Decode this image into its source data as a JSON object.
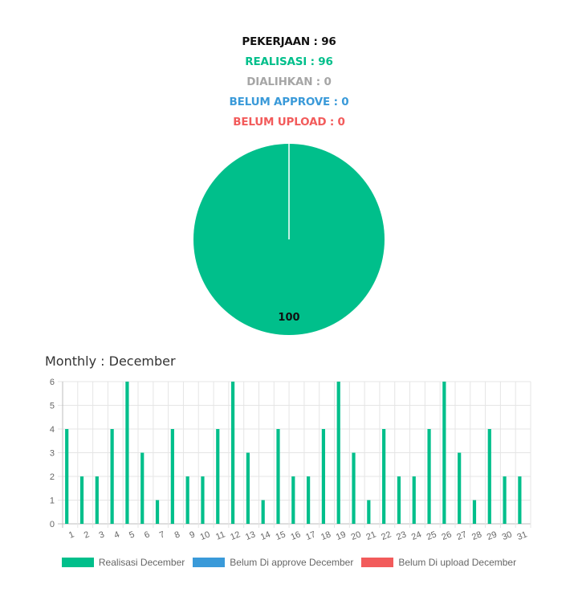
{
  "summary": {
    "pekerjaan": "PEKERJAAN : 96",
    "realisasi": "REALISASI : 96",
    "dialihkan": "DIALIHKAN : 0",
    "belum_approve": "BELUM APPROVE : 0",
    "belum_upload": "BELUM UPLOAD : 0"
  },
  "colors": {
    "pekerjaan": "#111111",
    "realisasi": "#00bf8b",
    "dialihkan": "#a6a6a6",
    "belum_approve": "#3a9ad9",
    "belum_upload": "#f25b5b",
    "grid": "#e5e5e5",
    "axis_text": "#666666"
  },
  "monthly_title": "Monthly : December",
  "chart_data": [
    {
      "type": "pie",
      "labels": [
        "REALISASI",
        "DIALIHKAN",
        "BELUM APPROVE",
        "BELUM UPLOAD"
      ],
      "values": [
        100,
        0,
        0,
        0
      ],
      "data_labels": [
        "100"
      ],
      "colors": [
        "#00bf8b",
        "#a6a6a6",
        "#3a9ad9",
        "#f25b5b"
      ]
    },
    {
      "type": "bar",
      "title": "Monthly : December",
      "categories": [
        "1",
        "2",
        "3",
        "4",
        "5",
        "6",
        "7",
        "8",
        "9",
        "10",
        "11",
        "12",
        "13",
        "14",
        "15",
        "16",
        "17",
        "18",
        "19",
        "20",
        "21",
        "22",
        "23",
        "24",
        "25",
        "26",
        "27",
        "28",
        "29",
        "30",
        "31"
      ],
      "series": [
        {
          "name": "Realisasi December",
          "color": "#00bf8b",
          "values": [
            4,
            2,
            2,
            4,
            6,
            3,
            1,
            4,
            2,
            2,
            4,
            6,
            3,
            1,
            4,
            2,
            2,
            4,
            6,
            3,
            1,
            4,
            2,
            2,
            4,
            6,
            3,
            1,
            4,
            2,
            2
          ]
        },
        {
          "name": "Belum Di approve December",
          "color": "#3a9ad9",
          "values": [
            0,
            0,
            0,
            0,
            0,
            0,
            0,
            0,
            0,
            0,
            0,
            0,
            0,
            0,
            0,
            0,
            0,
            0,
            0,
            0,
            0,
            0,
            0,
            0,
            0,
            0,
            0,
            0,
            0,
            0,
            0
          ]
        },
        {
          "name": "Belum Di upload December",
          "color": "#f25b5b",
          "values": [
            0,
            0,
            0,
            0,
            0,
            0,
            0,
            0,
            0,
            0,
            0,
            0,
            0,
            0,
            0,
            0,
            0,
            0,
            0,
            0,
            0,
            0,
            0,
            0,
            0,
            0,
            0,
            0,
            0,
            0,
            0
          ]
        }
      ],
      "ylim": [
        0,
        6
      ],
      "yticks": [
        0,
        1,
        2,
        3,
        4,
        5,
        6
      ],
      "grid": true,
      "legend": "bottom"
    }
  ]
}
